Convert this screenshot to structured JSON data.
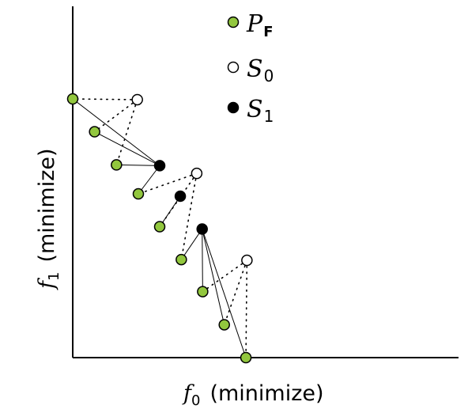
{
  "axes": {
    "x_label_symbol": "f",
    "x_label_sub": "0",
    "x_label_text": "(minimize)",
    "y_label_symbol": "f",
    "y_label_sub": "1",
    "y_label_text": "(minimize)"
  },
  "legend": [
    {
      "symbol": "P",
      "sub": "F",
      "marker": "pareto"
    },
    {
      "symbol": "S",
      "sub": "0",
      "marker": "s0"
    },
    {
      "symbol": "S",
      "sub": "1",
      "marker": "s1"
    }
  ],
  "colors": {
    "pareto_fill": "#92c73e",
    "pareto_stroke": "#000000",
    "s0_fill": "#ffffff",
    "s1_fill": "#000000",
    "axis": "#000000",
    "line": "#000000"
  },
  "chart_data": {
    "type": "scatter",
    "x_range": [
      0,
      100
    ],
    "y_range": [
      0,
      100
    ],
    "pareto": [
      {
        "x": 0,
        "y": 100
      },
      {
        "x": 8.5,
        "y": 87.3
      },
      {
        "x": 17,
        "y": 74.5
      },
      {
        "x": 25.5,
        "y": 63.3
      },
      {
        "x": 33.8,
        "y": 50.6
      },
      {
        "x": 42.2,
        "y": 37.9
      },
      {
        "x": 50.5,
        "y": 25.5
      },
      {
        "x": 58.9,
        "y": 12.7
      },
      {
        "x": 67.3,
        "y": 0
      }
    ],
    "s0": [
      {
        "x": 25.1,
        "y": 99.7,
        "links": [
          0,
          1,
          2
        ]
      },
      {
        "x": 48.2,
        "y": 71.2,
        "links": [
          3,
          4,
          5
        ]
      },
      {
        "x": 67.7,
        "y": 37.6,
        "links": [
          6,
          7,
          8
        ]
      }
    ],
    "s1": [
      {
        "x": 33.8,
        "y": 74.2,
        "links": [
          0,
          1,
          2,
          3
        ]
      },
      {
        "x": 41.8,
        "y": 62.4,
        "links": [
          4
        ]
      },
      {
        "x": 50.3,
        "y": 49.7,
        "links": [
          5,
          6,
          7,
          8
        ]
      }
    ]
  }
}
